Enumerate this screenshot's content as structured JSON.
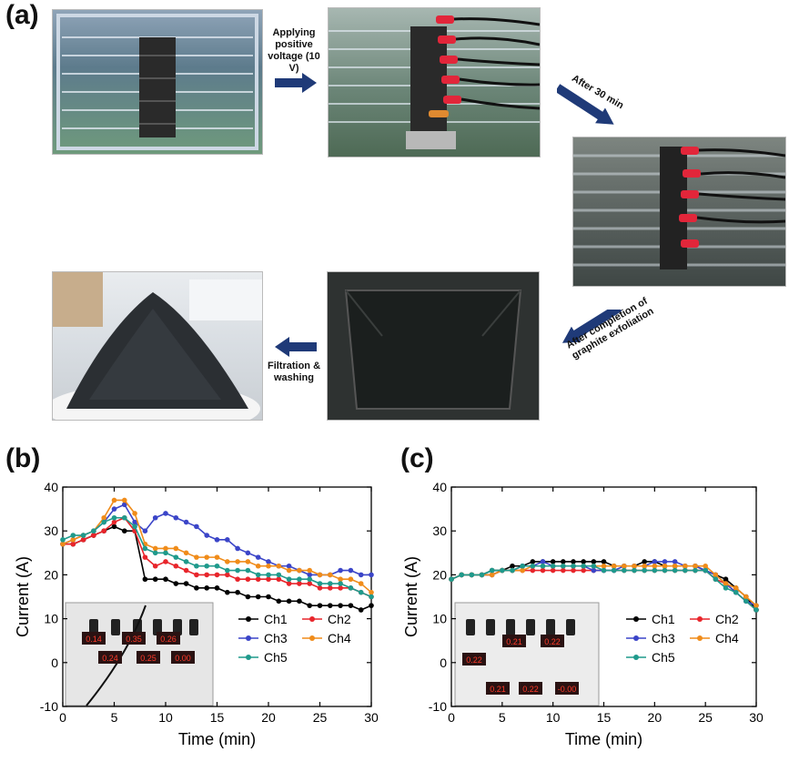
{
  "panel_labels": {
    "a": "(a)",
    "b": "(b)",
    "c": "(c)"
  },
  "captions": {
    "step1": "Applying positive voltage (10 V)",
    "step2": "After 30 min",
    "step3": "After completion of graphite exfoliation",
    "step4": "Filtration & washing"
  },
  "colors": {
    "Ch1": "#000000",
    "Ch2": "#e8252b",
    "Ch3": "#3b45c8",
    "Ch4": "#f08c1a",
    "Ch5": "#1f9a8c",
    "arrow": "#1f3a78"
  },
  "inset_readouts": {
    "b": [
      "0.14",
      "0.35",
      "0.26",
      "0.24",
      "0.25",
      "0.00"
    ],
    "c": [
      "0.22",
      "0.21",
      "0.22",
      "0.21",
      "0.22",
      "-0.00"
    ]
  },
  "chart_data": [
    {
      "type": "line",
      "panel": "(b)",
      "xlabel": "Time (min)",
      "ylabel": "Current (A)",
      "xlim": [
        0,
        30
      ],
      "ylim": [
        -10,
        40
      ],
      "xticks": [
        0,
        5,
        10,
        15,
        20,
        25,
        30
      ],
      "yticks": [
        -10,
        0,
        10,
        20,
        30,
        40
      ],
      "x": [
        0,
        1,
        2,
        3,
        4,
        5,
        6,
        7,
        8,
        9,
        10,
        11,
        12,
        13,
        14,
        15,
        16,
        17,
        18,
        19,
        20,
        21,
        22,
        23,
        24,
        25,
        26,
        27,
        28,
        29,
        30
      ],
      "legend": [
        "Ch1",
        "Ch2",
        "Ch3",
        "Ch4",
        "Ch5"
      ],
      "series": [
        {
          "name": "Ch1",
          "values": [
            27,
            27,
            28,
            29,
            30,
            31,
            30,
            30,
            19,
            19,
            19,
            18,
            18,
            17,
            17,
            17,
            16,
            16,
            15,
            15,
            15,
            14,
            14,
            14,
            13,
            13,
            13,
            13,
            13,
            12,
            13
          ]
        },
        {
          "name": "Ch2",
          "values": [
            27,
            27,
            28,
            29,
            30,
            32,
            33,
            30,
            24,
            22,
            23,
            22,
            21,
            20,
            20,
            20,
            20,
            19,
            19,
            19,
            19,
            19,
            18,
            18,
            18,
            17,
            17,
            17,
            17,
            16,
            15
          ]
        },
        {
          "name": "Ch3",
          "values": [
            27,
            28,
            29,
            30,
            32,
            35,
            36,
            32,
            30,
            33,
            34,
            33,
            32,
            31,
            29,
            28,
            28,
            26,
            25,
            24,
            23,
            22,
            22,
            21,
            20,
            20,
            20,
            21,
            21,
            20,
            20
          ]
        },
        {
          "name": "Ch4",
          "values": [
            27,
            28,
            29,
            30,
            33,
            37,
            37,
            34,
            27,
            26,
            26,
            26,
            25,
            24,
            24,
            24,
            23,
            23,
            23,
            22,
            22,
            22,
            21,
            21,
            21,
            20,
            20,
            19,
            19,
            18,
            16
          ]
        },
        {
          "name": "Ch5",
          "values": [
            28,
            29,
            29,
            30,
            32,
            33,
            33,
            31,
            26,
            25,
            25,
            24,
            23,
            22,
            22,
            22,
            21,
            21,
            21,
            20,
            20,
            20,
            19,
            19,
            19,
            18,
            18,
            18,
            17,
            16,
            15
          ]
        }
      ]
    },
    {
      "type": "line",
      "panel": "(c)",
      "xlabel": "Time (min)",
      "ylabel": "Current (A)",
      "xlim": [
        0,
        30
      ],
      "ylim": [
        -10,
        40
      ],
      "xticks": [
        0,
        5,
        10,
        15,
        20,
        25,
        30
      ],
      "yticks": [
        -10,
        0,
        10,
        20,
        30,
        40
      ],
      "x": [
        0,
        1,
        2,
        3,
        4,
        5,
        6,
        7,
        8,
        9,
        10,
        11,
        12,
        13,
        14,
        15,
        16,
        17,
        18,
        19,
        20,
        21,
        22,
        23,
        24,
        25,
        26,
        27,
        28,
        29,
        30
      ],
      "legend": [
        "Ch1",
        "Ch2",
        "Ch3",
        "Ch4",
        "Ch5"
      ],
      "series": [
        {
          "name": "Ch1",
          "values": [
            19,
            20,
            20,
            20,
            21,
            21,
            22,
            22,
            23,
            23,
            23,
            23,
            23,
            23,
            23,
            23,
            22,
            22,
            22,
            23,
            23,
            22,
            22,
            22,
            22,
            21,
            20,
            19,
            17,
            15,
            12
          ]
        },
        {
          "name": "Ch2",
          "values": [
            19,
            20,
            20,
            20,
            20,
            21,
            21,
            21,
            21,
            21,
            21,
            21,
            21,
            21,
            21,
            21,
            21,
            21,
            21,
            21,
            21,
            21,
            21,
            21,
            21,
            21,
            19,
            18,
            16,
            14,
            12
          ]
        },
        {
          "name": "Ch3",
          "values": [
            19,
            20,
            20,
            20,
            20,
            21,
            21,
            22,
            22,
            23,
            22,
            22,
            22,
            22,
            21,
            21,
            21,
            22,
            22,
            22,
            23,
            23,
            23,
            22,
            22,
            21,
            20,
            18,
            16,
            14,
            13
          ]
        },
        {
          "name": "Ch4",
          "values": [
            19,
            20,
            20,
            20,
            20,
            21,
            21,
            21,
            22,
            22,
            22,
            22,
            22,
            22,
            22,
            22,
            22,
            22,
            22,
            22,
            22,
            22,
            22,
            22,
            22,
            22,
            20,
            18,
            17,
            15,
            13
          ]
        },
        {
          "name": "Ch5",
          "values": [
            19,
            20,
            20,
            20,
            21,
            21,
            21,
            22,
            22,
            22,
            22,
            22,
            22,
            22,
            22,
            21,
            21,
            21,
            21,
            21,
            21,
            21,
            21,
            21,
            21,
            21,
            19,
            17,
            16,
            14,
            12
          ]
        }
      ]
    }
  ]
}
